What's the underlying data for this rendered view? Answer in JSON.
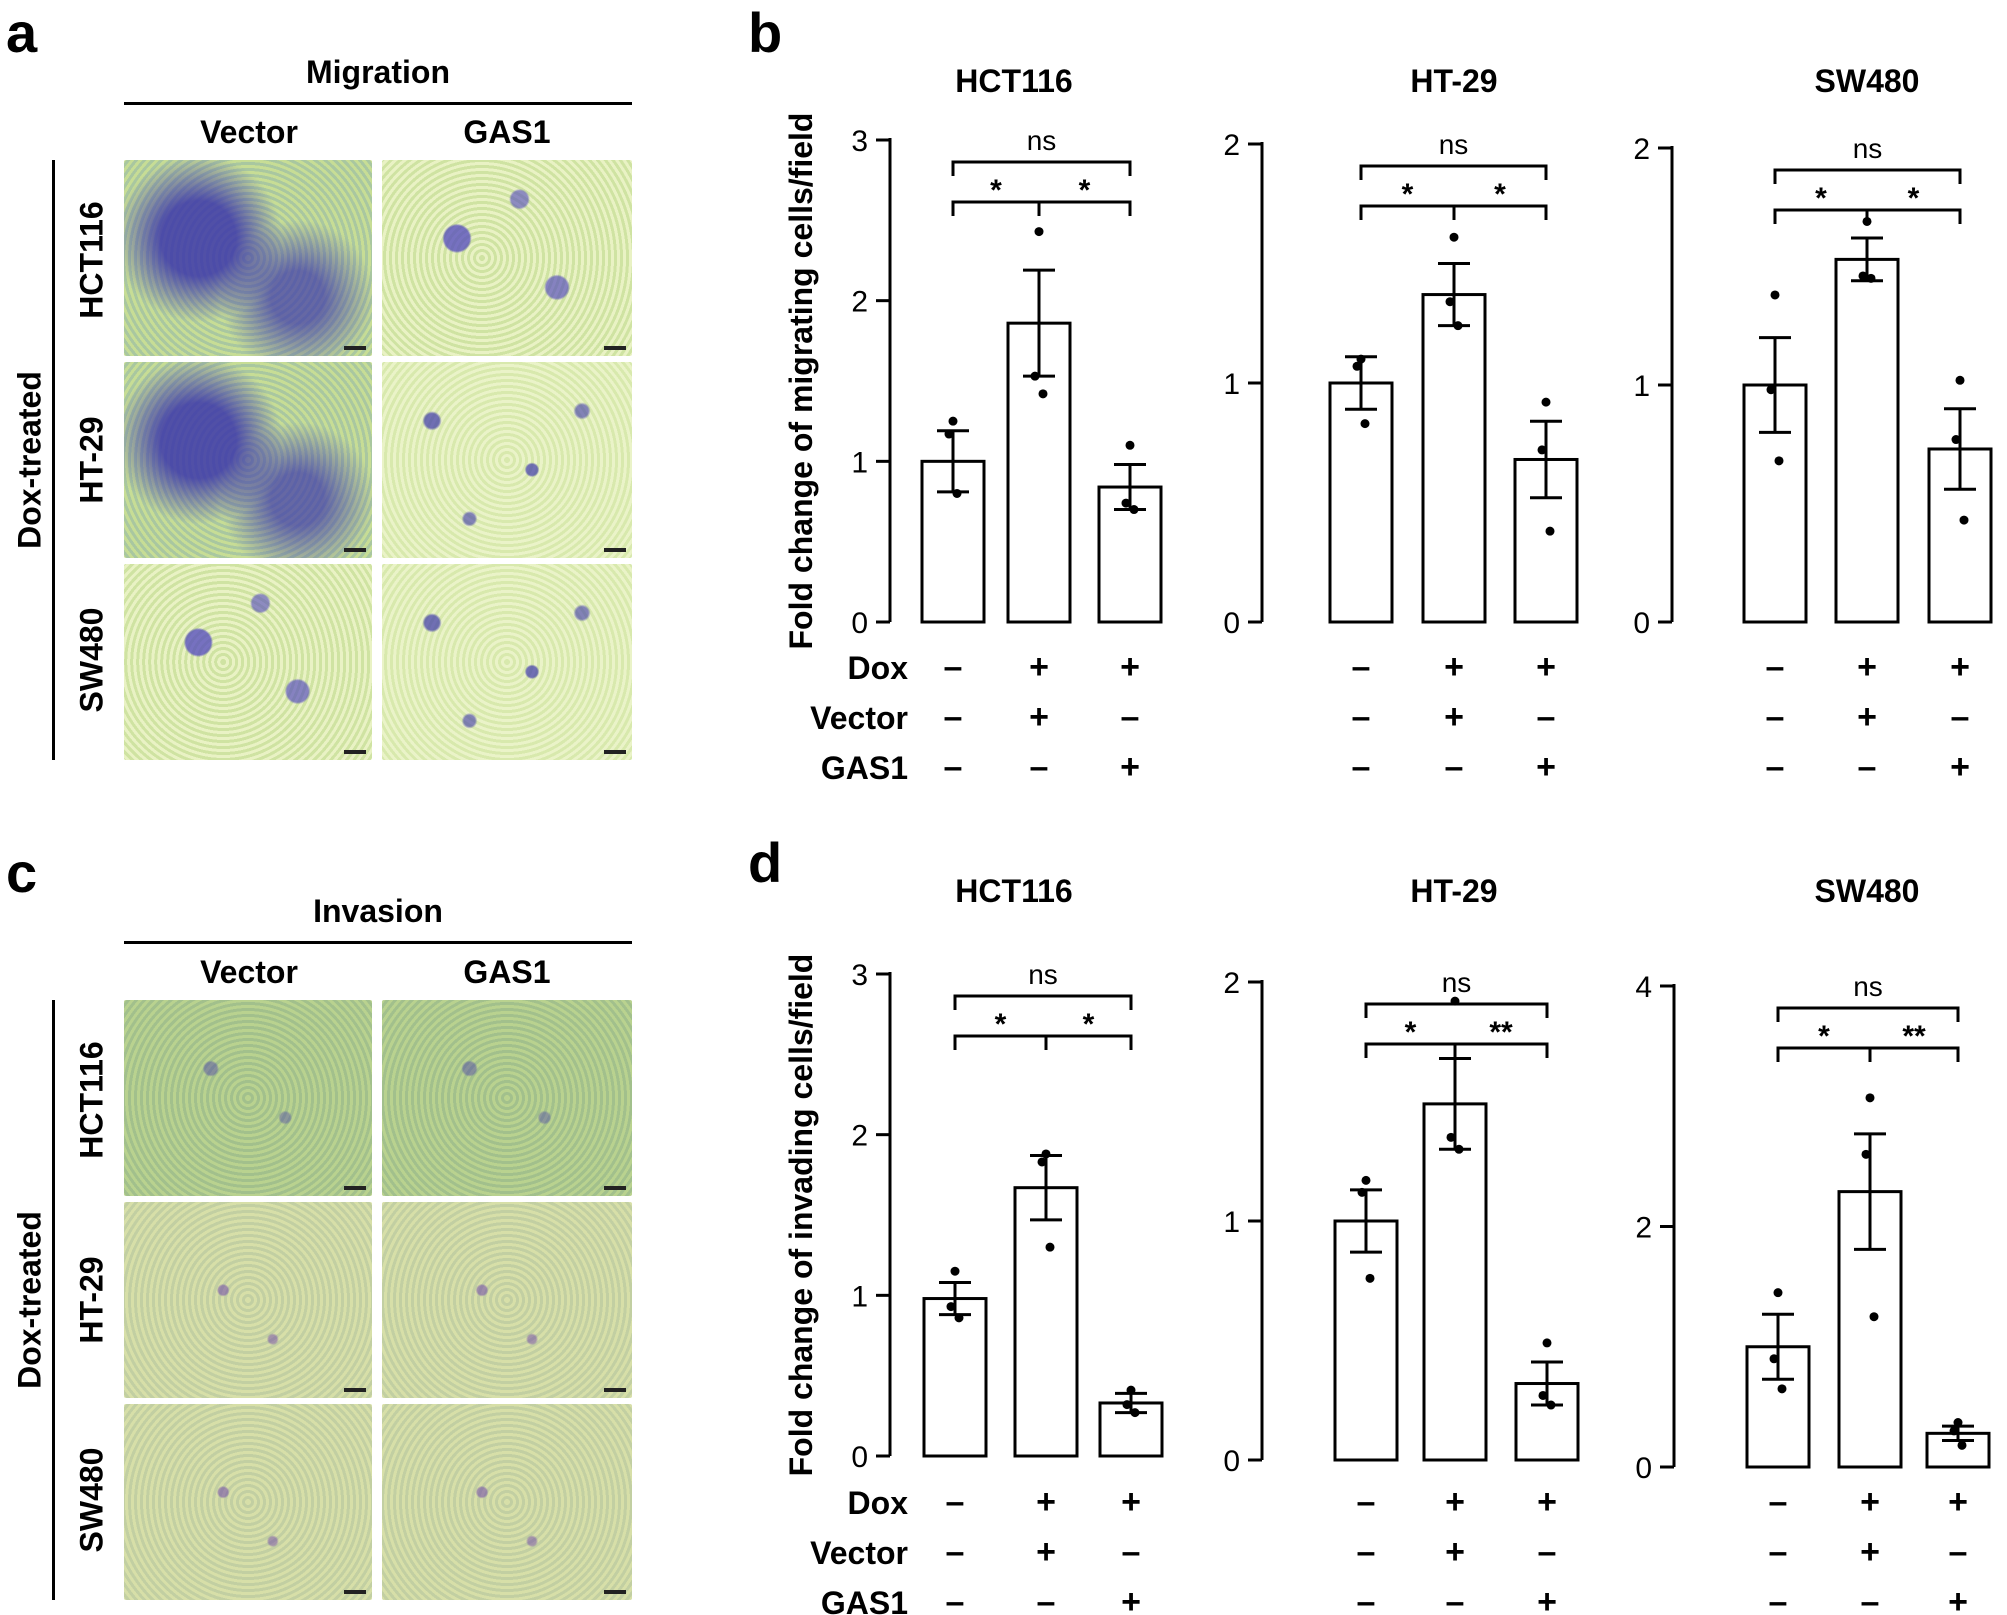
{
  "panel_letters": {
    "a": "a",
    "b": "b",
    "c": "c",
    "d": "d"
  },
  "migration_panel": {
    "title": "Migration",
    "columns": [
      "Vector",
      "GAS1"
    ],
    "rows": [
      "HCT116",
      "HT-29",
      "SW480"
    ],
    "side_label": "Dox-treated"
  },
  "invasion_panel": {
    "title": "Invasion",
    "columns": [
      "Vector",
      "GAS1"
    ],
    "rows": [
      "HCT116",
      "HT-29",
      "SW480"
    ],
    "side_label": "Dox-treated"
  },
  "condition_table": {
    "row_labels": [
      "Dox",
      "Vector",
      "GAS1"
    ],
    "values": [
      [
        "–",
        "+",
        "+"
      ],
      [
        "–",
        "+",
        "–"
      ],
      [
        "–",
        "–",
        "+"
      ]
    ]
  },
  "chart_data": [
    {
      "type": "bar",
      "panel": "b",
      "title": "HCT116",
      "ylabel": "Fold change of migrating cells/field",
      "categories": [
        "Dox–/Vector–/GAS1–",
        "Dox+/Vector+/GAS1–",
        "Dox+/Vector–/GAS1+"
      ],
      "values": [
        1.0,
        1.86,
        0.84
      ],
      "errors": [
        0.19,
        0.33,
        0.14
      ],
      "points": [
        [
          1.25,
          1.17,
          0.8
        ],
        [
          2.43,
          1.53,
          1.42
        ],
        [
          1.1,
          0.74,
          0.7
        ]
      ],
      "ylim": [
        0,
        3
      ],
      "yticks": [
        0,
        1,
        2,
        3
      ],
      "yticklabels": [
        "0",
        "1",
        "2",
        "3"
      ],
      "significance": [
        {
          "from": 1,
          "to": 2,
          "label": "*",
          "level": 0
        },
        {
          "from": 2,
          "to": 3,
          "label": "*",
          "level": 0
        },
        {
          "from": 1,
          "to": 3,
          "label": "ns",
          "level": 1
        }
      ]
    },
    {
      "type": "bar",
      "panel": "b",
      "title": "HT-29",
      "categories": [
        "Dox–/Vector–/GAS1–",
        "Dox+/Vector+/GAS1–",
        "Dox+/Vector–/GAS1+"
      ],
      "values": [
        1.0,
        1.37,
        0.68
      ],
      "errors": [
        0.11,
        0.13,
        0.16
      ],
      "points": [
        [
          1.1,
          1.07,
          0.83
        ],
        [
          1.61,
          1.34,
          1.24
        ],
        [
          0.92,
          0.72,
          0.38
        ]
      ],
      "ylim": [
        0,
        2
      ],
      "yticks": [
        0,
        1,
        2
      ],
      "yticklabels": [
        "0",
        "1",
        "2"
      ],
      "significance": [
        {
          "from": 1,
          "to": 2,
          "label": "*",
          "level": 0
        },
        {
          "from": 2,
          "to": 3,
          "label": "*",
          "level": 0
        },
        {
          "from": 1,
          "to": 3,
          "label": "ns",
          "level": 1
        }
      ]
    },
    {
      "type": "bar",
      "panel": "b",
      "title": "SW480",
      "categories": [
        "Dox–/Vector–/GAS1–",
        "Dox+/Vector+/GAS1–",
        "Dox+/Vector–/GAS1+"
      ],
      "values": [
        1.0,
        1.53,
        0.73
      ],
      "errors": [
        0.2,
        0.09,
        0.17
      ],
      "points": [
        [
          1.38,
          0.98,
          0.68
        ],
        [
          1.69,
          1.46,
          1.45
        ],
        [
          1.02,
          0.77,
          0.43
        ]
      ],
      "ylim": [
        0,
        2
      ],
      "yticks": [
        0,
        1,
        2
      ],
      "yticklabels": [
        "0",
        "1",
        "2"
      ],
      "significance": [
        {
          "from": 1,
          "to": 2,
          "label": "*",
          "level": 0
        },
        {
          "from": 2,
          "to": 3,
          "label": "*",
          "level": 0
        },
        {
          "from": 1,
          "to": 3,
          "label": "ns",
          "level": 1
        }
      ]
    },
    {
      "type": "bar",
      "panel": "d",
      "title": "HCT116",
      "ylabel": "Fold change of invading cells/field",
      "categories": [
        "Dox–/Vector–/GAS1–",
        "Dox+/Vector+/GAS1–",
        "Dox+/Vector–/GAS1+"
      ],
      "values": [
        0.98,
        1.67,
        0.33
      ],
      "errors": [
        0.1,
        0.2,
        0.06
      ],
      "points": [
        [
          1.15,
          0.93,
          0.86
        ],
        [
          1.88,
          1.83,
          1.3
        ],
        [
          0.41,
          0.32,
          0.27
        ]
      ],
      "ylim": [
        0,
        3
      ],
      "yticks": [
        0,
        1,
        2,
        3
      ],
      "yticklabels": [
        "0",
        "1",
        "2",
        "3"
      ],
      "significance": [
        {
          "from": 1,
          "to": 2,
          "label": "*",
          "level": 0
        },
        {
          "from": 2,
          "to": 3,
          "label": "*",
          "level": 0
        },
        {
          "from": 1,
          "to": 3,
          "label": "ns",
          "level": 1
        }
      ]
    },
    {
      "type": "bar",
      "panel": "d",
      "title": "HT-29",
      "categories": [
        "Dox–/Vector–/GAS1–",
        "Dox+/Vector+/GAS1–",
        "Dox+/Vector–/GAS1+"
      ],
      "values": [
        1.0,
        1.49,
        0.32
      ],
      "errors": [
        0.13,
        0.19,
        0.09
      ],
      "points": [
        [
          1.17,
          1.12,
          0.76
        ],
        [
          1.92,
          1.35,
          1.3
        ],
        [
          0.49,
          0.27,
          0.23
        ]
      ],
      "ylim": [
        0,
        2
      ],
      "yticks": [
        0,
        1,
        2
      ],
      "yticklabels": [
        "0",
        "1",
        "2"
      ],
      "significance": [
        {
          "from": 1,
          "to": 2,
          "label": "*",
          "level": 0
        },
        {
          "from": 2,
          "to": 3,
          "label": "**",
          "level": 0
        },
        {
          "from": 1,
          "to": 3,
          "label": "ns",
          "level": 1
        }
      ]
    },
    {
      "type": "bar",
      "panel": "d",
      "title": "SW480",
      "categories": [
        "Dox–/Vector–/GAS1–",
        "Dox+/Vector+/GAS1–",
        "Dox+/Vector–/GAS1+"
      ],
      "values": [
        1.0,
        2.29,
        0.28
      ],
      "errors": [
        0.27,
        0.48,
        0.06
      ],
      "points": [
        [
          1.45,
          0.9,
          0.65
        ],
        [
          3.07,
          2.6,
          1.25
        ],
        [
          0.37,
          0.3,
          0.18
        ]
      ],
      "ylim": [
        0,
        4
      ],
      "yticks": [
        0,
        2,
        4
      ],
      "yticklabels": [
        "0",
        "2",
        "4"
      ],
      "significance": [
        {
          "from": 1,
          "to": 2,
          "label": "*",
          "level": 0
        },
        {
          "from": 2,
          "to": 3,
          "label": "**",
          "level": 0
        },
        {
          "from": 1,
          "to": 3,
          "label": "ns",
          "level": 1
        }
      ]
    }
  ]
}
